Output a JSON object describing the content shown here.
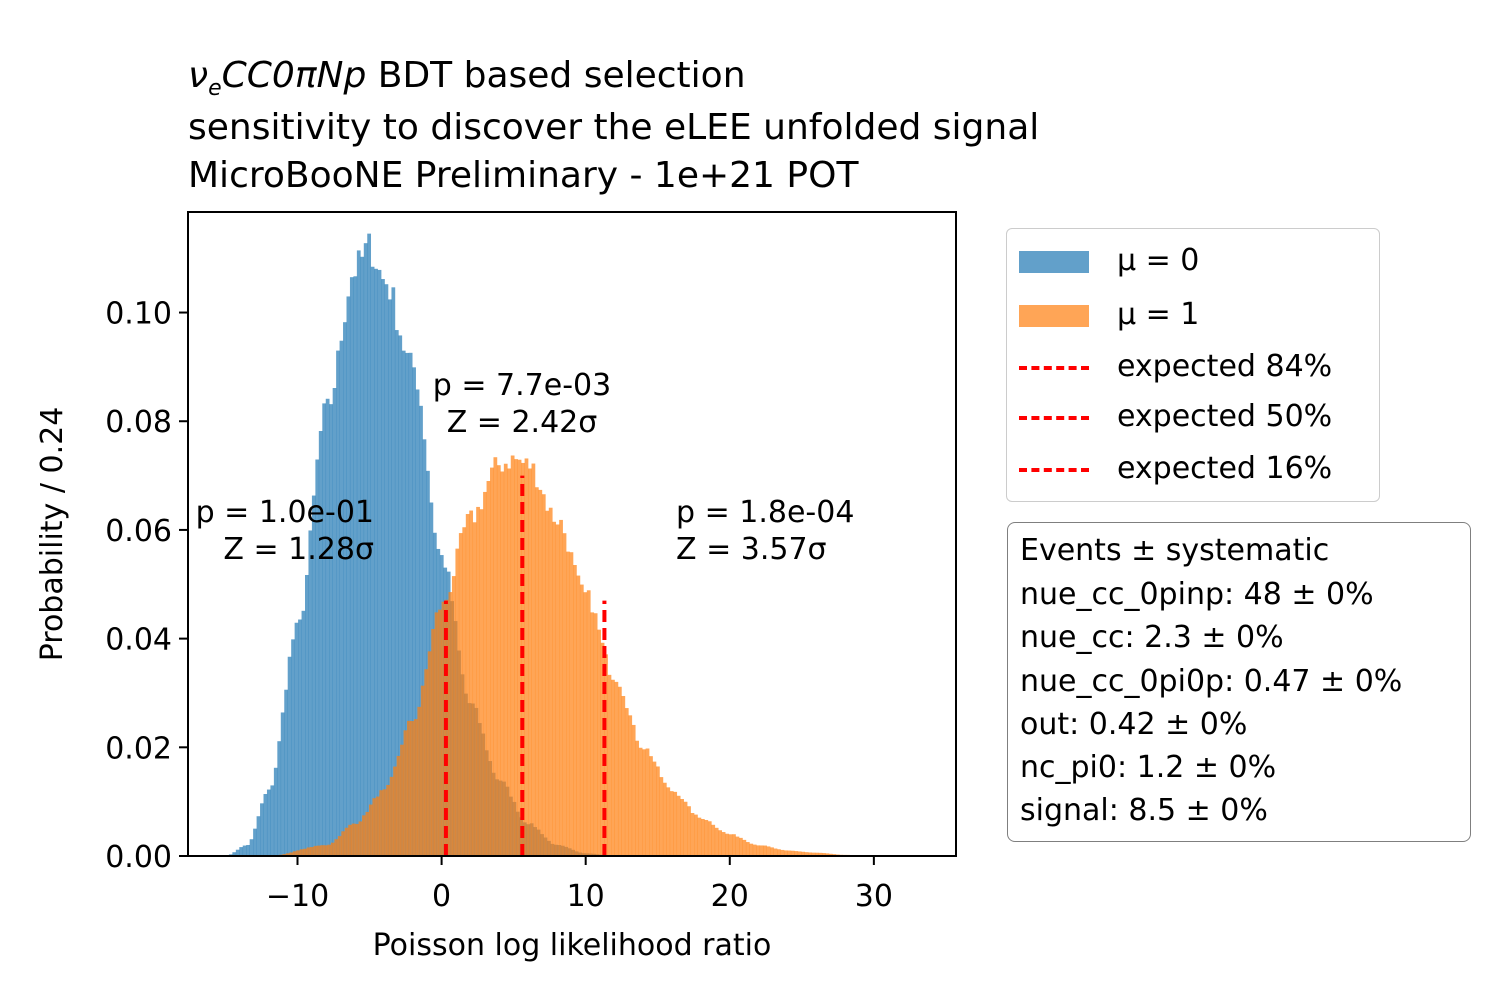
{
  "title": {
    "line1_math": "ν",
    "line1_sub": "e",
    "line1_rest_math": "CC0πNp",
    "line1_text": " BDT based selection",
    "line2": "sensitivity to discover the eLEE unfolded signal",
    "line3": "MicroBooNE Preliminary - 1e+21 POT"
  },
  "annotations": [
    {
      "p": "p = 1.0e-01",
      "z": "Z = 1.28σ"
    },
    {
      "p": "p = 7.7e-03",
      "z": "Z = 2.42σ"
    },
    {
      "p": "p = 1.8e-04",
      "z": "Z = 3.57σ"
    }
  ],
  "legend": [
    {
      "label": "μ = 0",
      "type": "patch",
      "color": "#1f77b4"
    },
    {
      "label": "μ = 1",
      "type": "patch",
      "color": "#ff7f0e"
    },
    {
      "label": "expected 84%",
      "type": "dashed",
      "color": "#ff0000"
    },
    {
      "label": "expected 50%",
      "type": "dashed",
      "color": "#ff0000"
    },
    {
      "label": "expected 16%",
      "type": "dashed",
      "color": "#ff0000"
    }
  ],
  "events_box": {
    "header": "Events ± systematic",
    "lines": [
      "nue_cc_0pinp: 48 ± 0%",
      "nue_cc: 2.3 ± 0%",
      "nue_cc_0pi0p: 0.47 ± 0%",
      "out: 0.42 ± 0%",
      "nc_pi0: 1.2 ± 0%",
      "signal: 8.5 ± 0%"
    ]
  },
  "chart_data": {
    "type": "histogram",
    "xlabel": "Poisson log likelihood ratio",
    "ylabel": "Probability / 0.24",
    "xlim": [
      -17.6,
      35.7
    ],
    "ylim": [
      0,
      0.1185
    ],
    "xticks": [
      -10,
      0,
      10,
      20,
      30
    ],
    "xtick_labels": [
      "−10",
      "0",
      "10",
      "20",
      "30"
    ],
    "yticks": [
      0,
      0.02,
      0.04,
      0.06,
      0.08,
      0.1
    ],
    "ytick_labels": [
      "0.00",
      "0.02",
      "0.04",
      "0.06",
      "0.08",
      "0.10"
    ],
    "bin_width": 0.24,
    "grid": false,
    "legend_position": "outside-right",
    "series": [
      {
        "name": "μ = 0",
        "color": "#1f77b4",
        "alpha": 0.7,
        "shape": "gaussian-skewed",
        "points": [
          [
            -15,
            0.0
          ],
          [
            -13.5,
            0.002
          ],
          [
            -12,
            0.012
          ],
          [
            -10,
            0.042
          ],
          [
            -8,
            0.082
          ],
          [
            -6,
            0.108
          ],
          [
            -5,
            0.112
          ],
          [
            -4,
            0.106
          ],
          [
            -2,
            0.09
          ],
          [
            0,
            0.055
          ],
          [
            2,
            0.028
          ],
          [
            4,
            0.014
          ],
          [
            6,
            0.006
          ],
          [
            8,
            0.002
          ],
          [
            10,
            0.0005
          ],
          [
            12,
            0.0
          ]
        ]
      },
      {
        "name": "μ = 1",
        "color": "#ff7f0e",
        "alpha": 0.7,
        "shape": "gaussian-skewed",
        "points": [
          [
            -12,
            0.0
          ],
          [
            -8,
            0.002
          ],
          [
            -6,
            0.006
          ],
          [
            -4,
            0.012
          ],
          [
            -2,
            0.025
          ],
          [
            0,
            0.046
          ],
          [
            2,
            0.062
          ],
          [
            4,
            0.072
          ],
          [
            5,
            0.073
          ],
          [
            6,
            0.072
          ],
          [
            8,
            0.062
          ],
          [
            10,
            0.048
          ],
          [
            12,
            0.033
          ],
          [
            14,
            0.02
          ],
          [
            16,
            0.012
          ],
          [
            18,
            0.007
          ],
          [
            20,
            0.004
          ],
          [
            22,
            0.002
          ],
          [
            24,
            0.001
          ],
          [
            26,
            0.0006
          ],
          [
            28,
            0.0002
          ],
          [
            30,
            0.0
          ]
        ]
      }
    ],
    "vlines": [
      {
        "name": "expected 84%",
        "x": 0.3,
        "ymax": 0.047
      },
      {
        "name": "expected 50%",
        "x": 5.6,
        "ymax": 0.07
      },
      {
        "name": "expected 16%",
        "x": 11.3,
        "ymax": 0.047
      }
    ]
  }
}
